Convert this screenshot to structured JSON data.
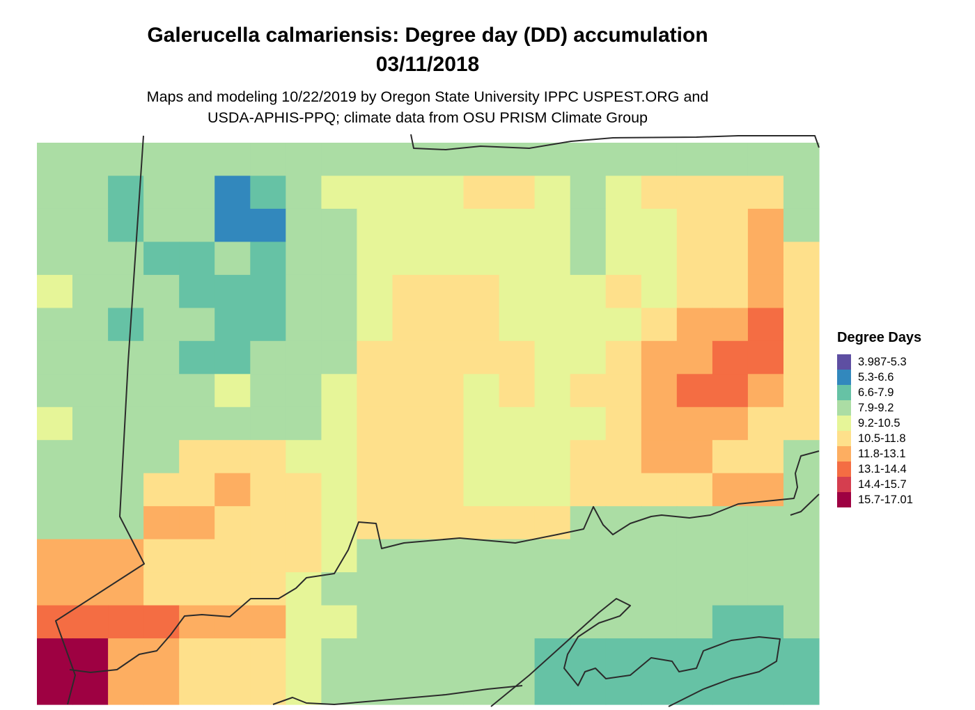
{
  "map": {
    "title_line1": "Galerucella calmariensis: Degree day (DD) accumulation",
    "title_line2": "03/11/2018",
    "subtitle_line1": "Maps and modeling 10/22/2019 by Oregon State University IPPC USPEST.ORG and",
    "subtitle_line2": "USDA-APHIS-PPQ; climate data from OSU PRISM Climate Group"
  },
  "legend": {
    "title": "Degree Days",
    "items": [
      {
        "label": "3.987-5.3",
        "color": "#5E4FA2"
      },
      {
        "label": "5.3-6.6",
        "color": "#3288BD"
      },
      {
        "label": "6.6-7.9",
        "color": "#66C2A5"
      },
      {
        "label": "7.9-9.2",
        "color": "#ABDDA4"
      },
      {
        "label": "9.2-10.5",
        "color": "#E6F598"
      },
      {
        "label": "10.5-11.8",
        "color": "#FEE08B"
      },
      {
        "label": "11.8-13.1",
        "color": "#FDAE61"
      },
      {
        "label": "13.1-14.4",
        "color": "#F46D43"
      },
      {
        "label": "14.4-15.7",
        "color": "#D53E4F"
      },
      {
        "label": "15.7-17.01",
        "color": "#9E0142"
      }
    ]
  },
  "raster_rows": [
    "3333333333333333333333",
    "3323312344445543455553",
    "3323311334444443445563",
    "3332232334444443445565",
    "4333222334555444545565",
    "3323322334555444456675",
    "3333223335555544566775",
    "3333343345554545567765",
    "4333333345554444566655",
    "3333555445554445566553",
    "3335565545554445555663",
    "3336655545555553333333",
    "6665555543333333333333",
    "6665555433333333333333",
    "7777666443333333333223",
    "9966555433333322222222",
    "9966555433333322222222"
  ]
}
